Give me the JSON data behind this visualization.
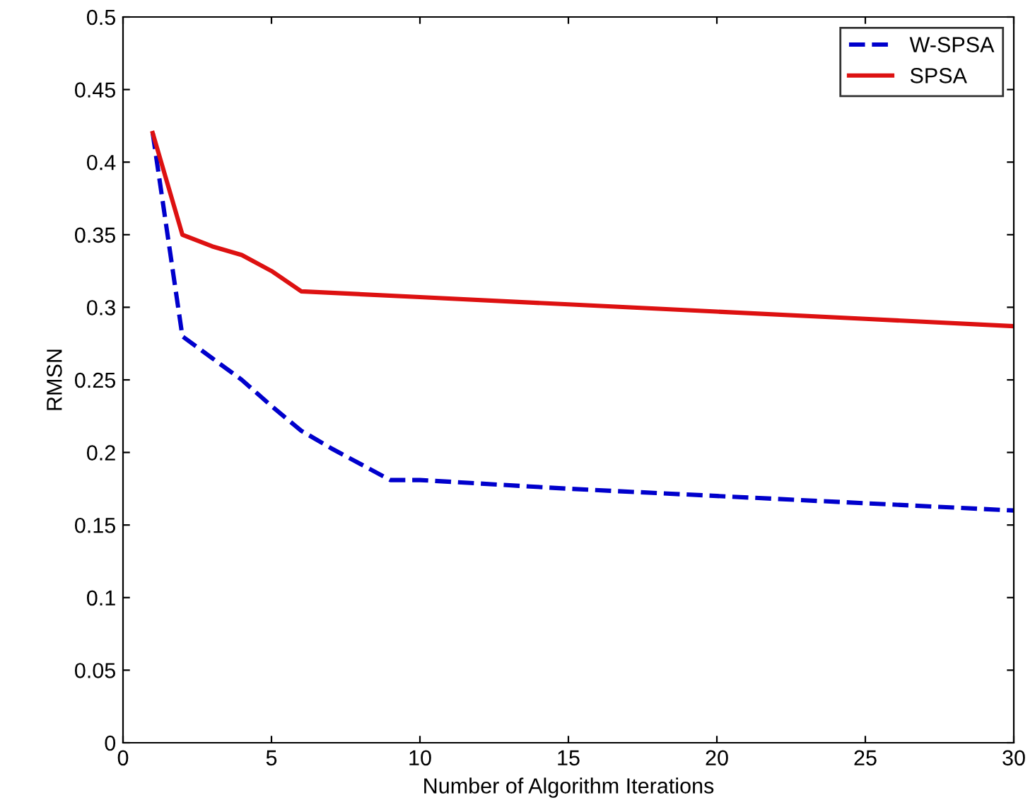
{
  "chart_data": {
    "type": "line",
    "xlabel": "Number of Algorithm Iterations",
    "ylabel": "RMSN",
    "xlim": [
      0,
      30
    ],
    "xticks": [
      0,
      5,
      10,
      15,
      20,
      25,
      30
    ],
    "ylim": [
      0,
      0.5
    ],
    "yticks": [
      0,
      0.05,
      0.1,
      0.15,
      0.2,
      0.25,
      0.3,
      0.35,
      0.4,
      0.45,
      0.5
    ],
    "legend": "top right",
    "grid": false,
    "series": [
      {
        "name": "W-SPSA",
        "color": "#0000cc",
        "line_style": "dashed",
        "x": [
          1,
          2,
          3,
          4,
          5,
          6,
          7,
          8,
          9,
          10,
          15,
          20,
          25,
          30
        ],
        "values": [
          0.42,
          0.28,
          0.265,
          0.25,
          0.232,
          0.215,
          0.203,
          0.192,
          0.181,
          0.181,
          0.175,
          0.17,
          0.165,
          0.16
        ]
      },
      {
        "name": "SPSA",
        "color": "#dd1111",
        "line_style": "solid",
        "x": [
          1,
          2,
          3,
          4,
          5,
          6,
          10,
          15,
          20,
          25,
          30
        ],
        "values": [
          0.42,
          0.35,
          0.342,
          0.336,
          0.325,
          0.311,
          0.307,
          0.302,
          0.297,
          0.292,
          0.287
        ]
      }
    ]
  }
}
